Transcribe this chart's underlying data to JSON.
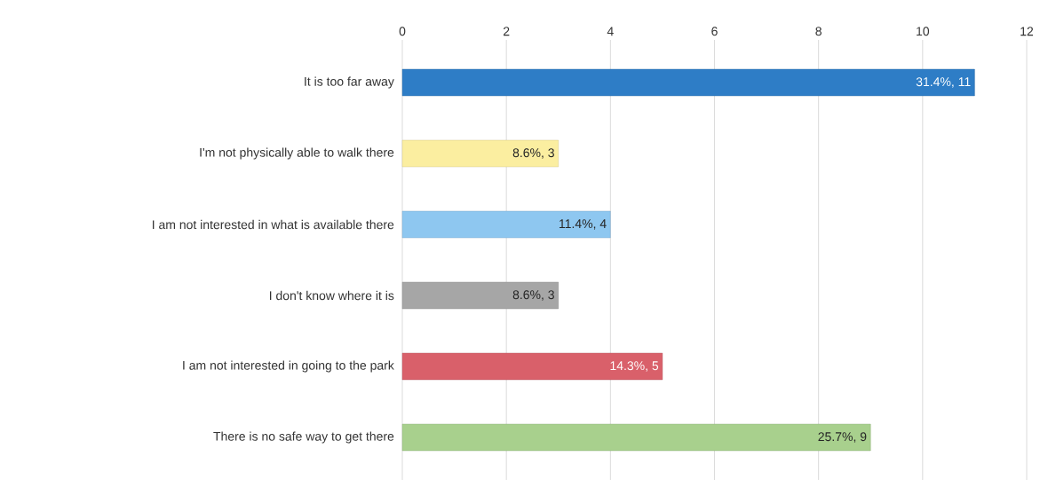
{
  "chart_data": {
    "type": "bar",
    "orientation": "horizontal",
    "categories": [
      "It is too far away",
      "I'm not physically able to walk there",
      "I am not interested in what is available there",
      "I don't know where it is",
      "I am not interested in going to the park",
      "There is no safe way to get there"
    ],
    "values": [
      11,
      3,
      4,
      3,
      5,
      9
    ],
    "colors": [
      "#2e7dc6",
      "#fbeea0",
      "#8ec7f0",
      "#a6a6a6",
      "#d9606a",
      "#a8d08d"
    ],
    "value_labels": [
      "31.4%, 11",
      "8.6%, 3",
      "11.4%, 4",
      "8.6%, 3",
      "14.3%, 5",
      "25.7%, 9"
    ],
    "xlim": [
      0,
      12
    ],
    "xticks": [
      0,
      2,
      4,
      6,
      8,
      10,
      12
    ],
    "grid": "x"
  }
}
